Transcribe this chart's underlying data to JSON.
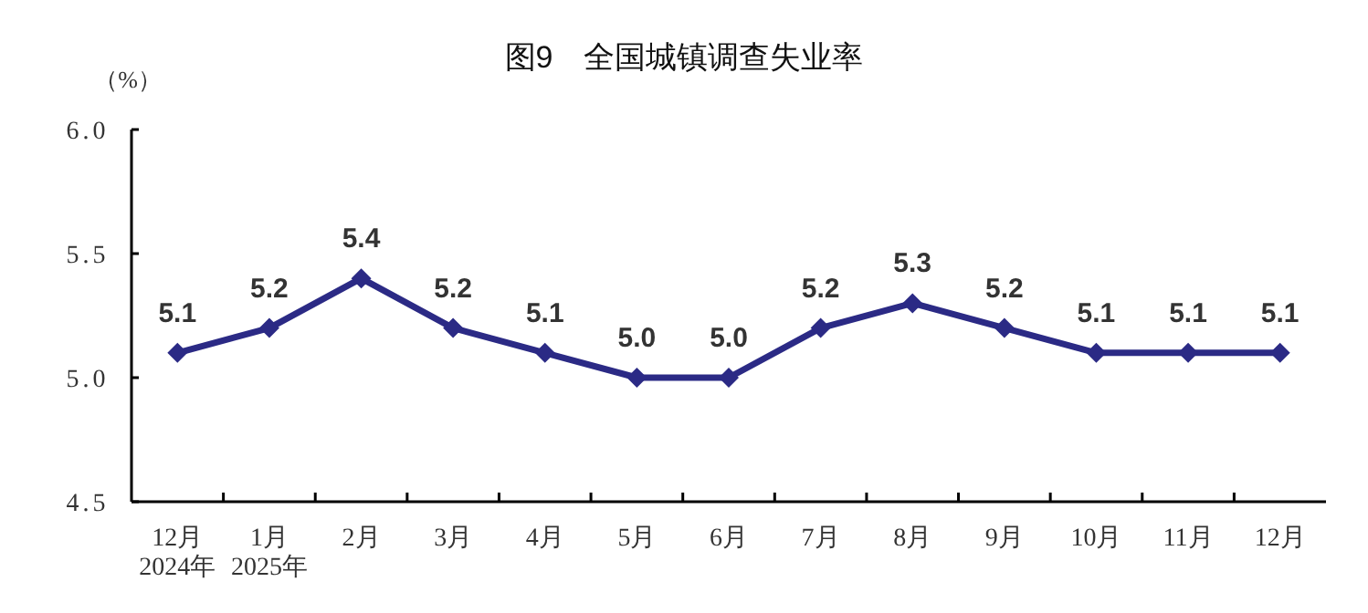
{
  "chart_data": {
    "type": "line",
    "title": "图9　全国城镇调查失业率",
    "ylabel": "（%）",
    "categories": [
      "12月\n2024年",
      "1月\n2025年",
      "2月",
      "3月",
      "4月",
      "5月",
      "6月",
      "7月",
      "8月",
      "9月",
      "10月",
      "11月",
      "12月"
    ],
    "series": [
      {
        "color": "#2b2a85",
        "values": [
          5.1,
          5.2,
          5.4,
          5.2,
          5.1,
          5.0,
          5.0,
          5.2,
          5.3,
          5.2,
          5.1,
          5.1,
          5.1
        ],
        "value_labels": [
          "5.1",
          "5.2",
          "5.4",
          "5.2",
          "5.1",
          "5.0",
          "5.0",
          "5.2",
          "5.3",
          "5.2",
          "5.1",
          "5.1",
          "5.1"
        ]
      }
    ],
    "ylim": [
      4.5,
      6.0
    ],
    "yticks": [
      {
        "value": 4.5,
        "label": "4.5"
      },
      {
        "value": 5.0,
        "label": "5.0"
      },
      {
        "value": 5.5,
        "label": "5.5"
      },
      {
        "value": 6.0,
        "label": "6.0"
      }
    ],
    "marker": "diamond",
    "line_style": "solid",
    "grid": false
  }
}
